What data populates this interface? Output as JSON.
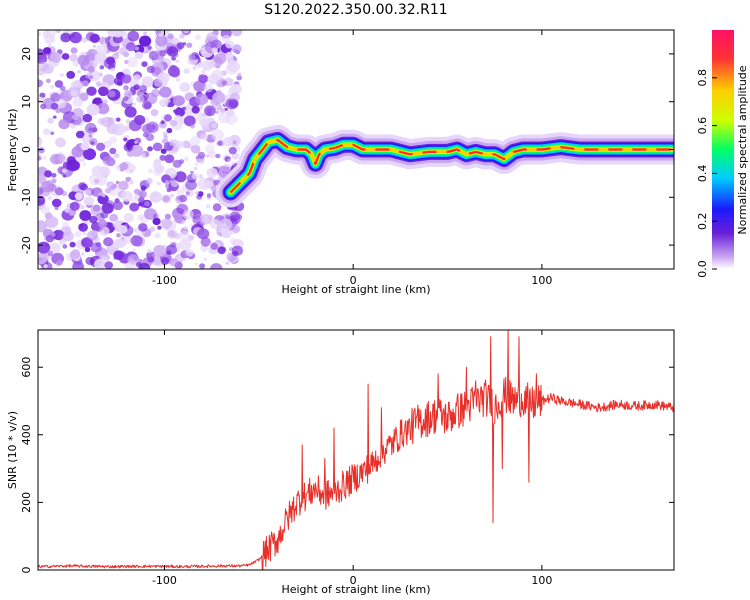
{
  "title": "S120.2022.350.00.32.R11",
  "chart_data": [
    {
      "type": "heatmap",
      "xlabel": "Height of straight line (km)",
      "ylabel": "Frequency (Hz)",
      "xlim": [
        -167,
        170
      ],
      "ylim": [
        -25,
        25
      ],
      "x_ticks": [
        -100,
        0,
        100
      ],
      "y_ticks": [
        -20,
        -10,
        0,
        10,
        20
      ],
      "colorbar": {
        "label": "Normalized spectral amplitude",
        "range": [
          0,
          1
        ],
        "ticks": [
          "0.0",
          "0.2",
          "0.4",
          "0.6",
          "0.8"
        ],
        "colormap": [
          "#ffffff",
          "#c9a6f2",
          "#6a1fd8",
          "#1a1aff",
          "#00ccff",
          "#00ff66",
          "#ccff00",
          "#ffcc00",
          "#ff3333",
          "#ff1166"
        ]
      },
      "noise_region_x": [
        -167,
        -60
      ],
      "ridge": {
        "x": [
          -65,
          -60,
          -55,
          -52,
          -48,
          -45,
          -40,
          -35,
          -30,
          -25,
          -22,
          -20,
          -18,
          -15,
          -10,
          -5,
          0,
          5,
          10,
          15,
          20,
          25,
          30,
          40,
          50,
          55,
          60,
          65,
          70,
          75,
          80,
          85,
          90,
          100,
          110,
          120,
          130,
          140,
          150,
          160,
          170
        ],
        "y": [
          -9,
          -7,
          -5,
          -2,
          0,
          1.5,
          2,
          0.5,
          0,
          0,
          -1,
          -3,
          -1,
          0,
          0.3,
          1,
          1,
          0,
          0,
          0,
          0,
          -0.5,
          -1,
          -0.5,
          -0.5,
          0,
          -1,
          -0.5,
          -1,
          -1,
          -2,
          -0.5,
          0,
          0,
          0.5,
          0,
          0,
          0,
          0,
          0,
          0
        ]
      }
    },
    {
      "type": "line",
      "xlabel": "Height of straight line (km)",
      "ylabel": "SNR (10 * v/v)",
      "xlim": [
        -167,
        170
      ],
      "ylim": [
        0,
        710
      ],
      "x_ticks": [
        -100,
        0,
        100
      ],
      "y_ticks": [
        0,
        200,
        400,
        600
      ],
      "series": [
        {
          "color": "#e8302a",
          "x": [
            -167,
            -150,
            -130,
            -110,
            -90,
            -70,
            -60,
            -55,
            -50,
            -45,
            -40,
            -35,
            -30,
            -25,
            -20,
            -15,
            -10,
            -5,
            0,
            5,
            10,
            15,
            20,
            25,
            30,
            35,
            40,
            45,
            50,
            55,
            60,
            65,
            70,
            75,
            80,
            85,
            90,
            95,
            100,
            105,
            110,
            120,
            130,
            140,
            150,
            160,
            170
          ],
          "y": [
            10,
            12,
            10,
            11,
            10,
            12,
            12,
            15,
            30,
            60,
            90,
            150,
            200,
            220,
            240,
            220,
            230,
            250,
            270,
            290,
            310,
            350,
            370,
            400,
            420,
            440,
            450,
            460,
            450,
            470,
            480,
            500,
            510,
            480,
            520,
            500,
            510,
            490,
            500,
            510,
            500,
            490,
            480,
            490,
            485,
            490,
            480
          ]
        }
      ],
      "spikes": [
        {
          "x": -27,
          "y": 370
        },
        {
          "x": -15,
          "y": 330
        },
        {
          "x": -10,
          "y": 420
        },
        {
          "x": 8,
          "y": 550
        },
        {
          "x": 15,
          "y": 480
        },
        {
          "x": 45,
          "y": 580
        },
        {
          "x": 60,
          "y": 600
        },
        {
          "x": 65,
          "y": 560
        },
        {
          "x": 73,
          "y": 690
        },
        {
          "x": 74,
          "y": 140
        },
        {
          "x": 79,
          "y": 300
        },
        {
          "x": 82,
          "y": 720
        },
        {
          "x": 88,
          "y": 690
        },
        {
          "x": 93,
          "y": 260
        },
        {
          "x": 97,
          "y": 580
        }
      ]
    }
  ]
}
